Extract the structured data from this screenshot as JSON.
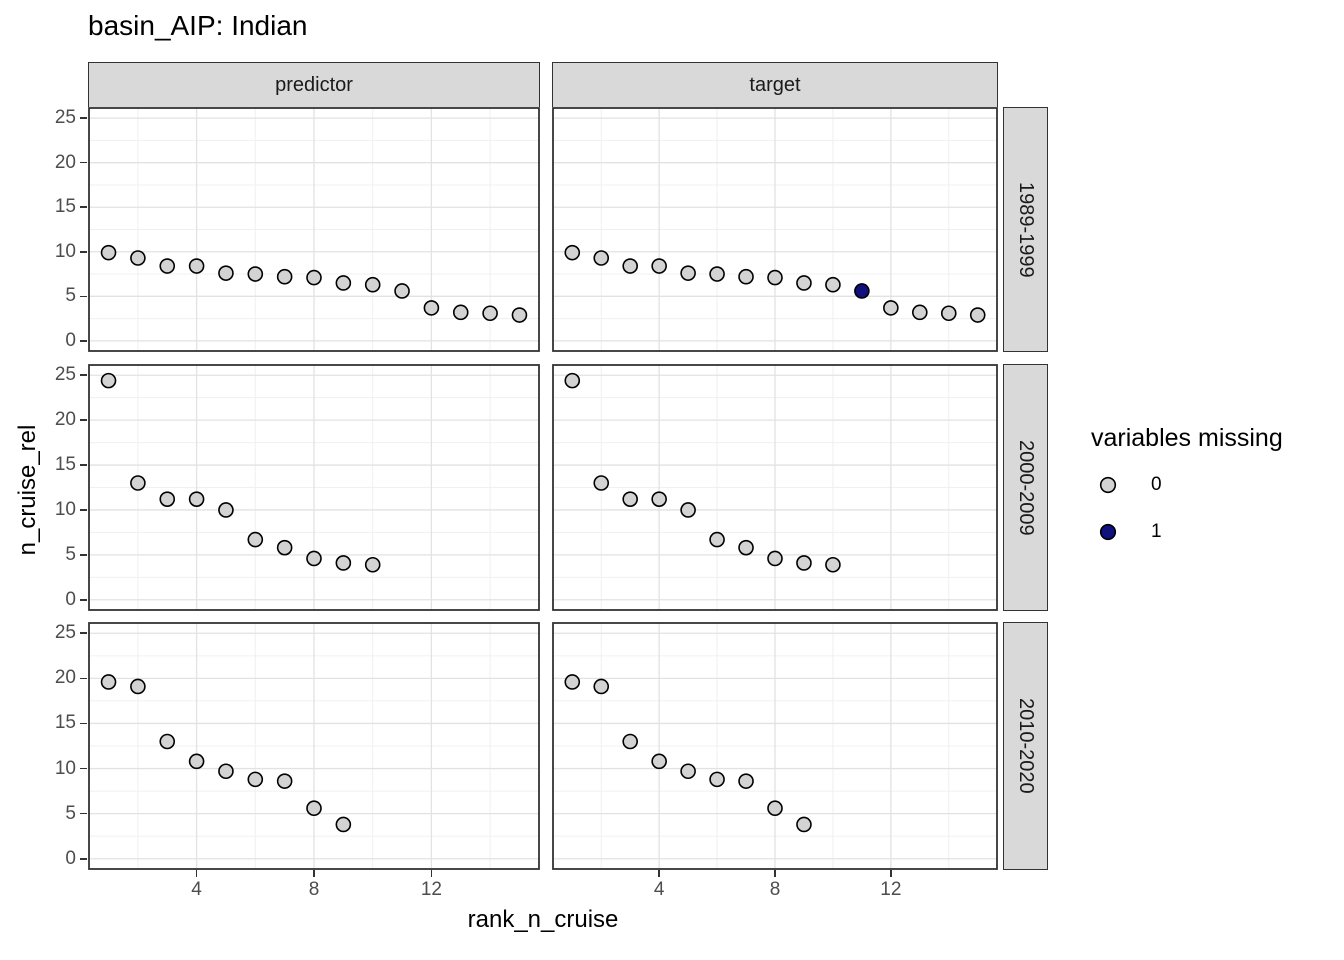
{
  "title": "basin_AIP: Indian",
  "axis": {
    "x_title": "rank_n_cruise",
    "y_title": "n_cruise_rel"
  },
  "facets": {
    "columns": [
      "predictor",
      "target"
    ],
    "rows": [
      "1989-1999",
      "2000-2009",
      "2010-2020"
    ]
  },
  "legend": {
    "title": "variables missing",
    "items": [
      {
        "label": "0",
        "color": "#D3D3D3"
      },
      {
        "label": "1",
        "color": "#10107E"
      }
    ]
  },
  "style": {
    "point_stroke": "#000000",
    "grid_major": "#E2E2E2",
    "grid_minor": "#F0F0F0",
    "panel_border": "#333333",
    "strip_bg": "#D9D9D9",
    "tick_label_color": "#4D4D4D"
  },
  "chart_data": {
    "type": "scatter",
    "title": "basin_AIP: Indian",
    "xlabel": "rank_n_cruise",
    "ylabel": "n_cruise_rel",
    "xlim": [
      0.3,
      15.7
    ],
    "ylim": [
      -1.25,
      26.25
    ],
    "x_ticks": [
      4,
      8,
      12
    ],
    "x_minor": [
      2,
      6,
      10,
      14
    ],
    "y_ticks": [
      0,
      5,
      10,
      15,
      20,
      25
    ],
    "y_minor": [
      2.5,
      7.5,
      12.5,
      17.5,
      22.5
    ],
    "grid": true,
    "legend_title": "variables missing",
    "legend_position": "right",
    "facet_columns": [
      "predictor",
      "target"
    ],
    "facet_rows": [
      "1989-1999",
      "2000-2009",
      "2010-2020"
    ],
    "panels": [
      {
        "col": "predictor",
        "row": "1989-1999",
        "x": [
          1,
          2,
          3,
          4,
          5,
          6,
          7,
          8,
          9,
          10,
          11,
          12,
          13,
          14,
          15
        ],
        "y": [
          9.9,
          9.3,
          8.4,
          8.4,
          7.6,
          7.5,
          7.2,
          7.1,
          6.5,
          6.3,
          5.6,
          3.7,
          3.2,
          3.1,
          2.9
        ],
        "missing": [
          0,
          0,
          0,
          0,
          0,
          0,
          0,
          0,
          0,
          0,
          0,
          0,
          0,
          0,
          0
        ]
      },
      {
        "col": "target",
        "row": "1989-1999",
        "x": [
          1,
          2,
          3,
          4,
          5,
          6,
          7,
          8,
          9,
          10,
          11,
          12,
          13,
          14,
          15
        ],
        "y": [
          9.9,
          9.3,
          8.4,
          8.4,
          7.6,
          7.5,
          7.2,
          7.1,
          6.5,
          6.3,
          5.6,
          3.7,
          3.2,
          3.1,
          2.9
        ],
        "missing": [
          0,
          0,
          0,
          0,
          0,
          0,
          0,
          0,
          0,
          0,
          1,
          0,
          0,
          0,
          0
        ]
      },
      {
        "col": "predictor",
        "row": "2000-2009",
        "x": [
          1,
          2,
          3,
          4,
          5,
          6,
          7,
          8,
          9,
          10
        ],
        "y": [
          24.4,
          13.0,
          11.2,
          11.2,
          10.0,
          6.7,
          5.8,
          4.6,
          4.1,
          3.9
        ],
        "missing": [
          0,
          0,
          0,
          0,
          0,
          0,
          0,
          0,
          0,
          0
        ]
      },
      {
        "col": "target",
        "row": "2000-2009",
        "x": [
          1,
          2,
          3,
          4,
          5,
          6,
          7,
          8,
          9,
          10
        ],
        "y": [
          24.4,
          13.0,
          11.2,
          11.2,
          10.0,
          6.7,
          5.8,
          4.6,
          4.1,
          3.9
        ],
        "missing": [
          0,
          0,
          0,
          0,
          0,
          0,
          0,
          0,
          0,
          0
        ]
      },
      {
        "col": "predictor",
        "row": "2010-2020",
        "x": [
          1,
          2,
          3,
          4,
          5,
          6,
          7,
          8,
          9
        ],
        "y": [
          19.6,
          19.1,
          13.0,
          10.8,
          9.7,
          8.8,
          8.6,
          5.6,
          3.8
        ],
        "missing": [
          0,
          0,
          0,
          0,
          0,
          0,
          0,
          0,
          0
        ]
      },
      {
        "col": "target",
        "row": "2010-2020",
        "x": [
          1,
          2,
          3,
          4,
          5,
          6,
          7,
          8,
          9
        ],
        "y": [
          19.6,
          19.1,
          13.0,
          10.8,
          9.7,
          8.8,
          8.6,
          5.6,
          3.8
        ],
        "missing": [
          0,
          0,
          0,
          0,
          0,
          0,
          0,
          0,
          0
        ]
      }
    ]
  }
}
